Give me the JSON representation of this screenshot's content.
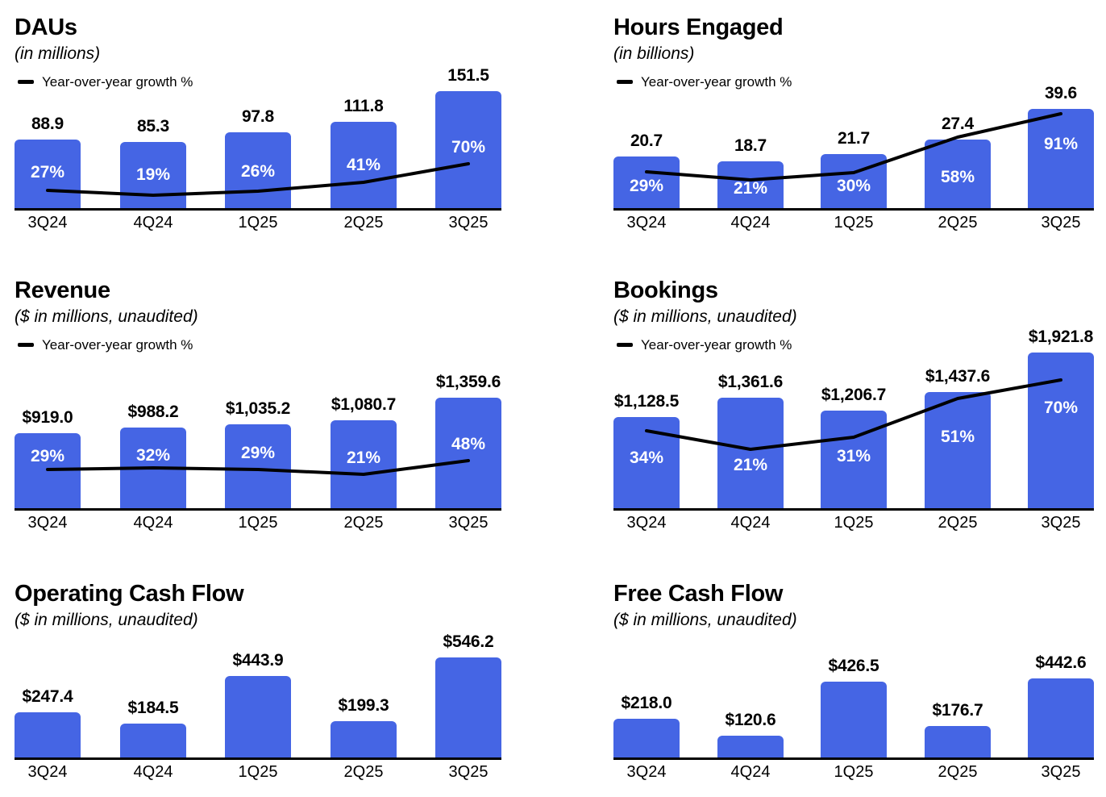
{
  "colors": {
    "bar": "#4565E4",
    "growth_line": "#000000",
    "axis": "#000000",
    "value_text": "#000000",
    "pct_text": "#ffffff"
  },
  "chart_data": [
    {
      "id": "daus",
      "type": "bar",
      "title": "DAUs",
      "subtitle": "(in millions)",
      "legend": "Year-over-year growth %",
      "legend_position": "top-left",
      "grid": false,
      "categories": [
        "3Q24",
        "4Q24",
        "1Q25",
        "2Q25",
        "3Q25"
      ],
      "series": [
        {
          "name": "DAUs",
          "type": "bar",
          "values": [
            88.9,
            85.3,
            97.8,
            111.8,
            151.5
          ],
          "labels": [
            "88.9",
            "85.3",
            "97.8",
            "111.8",
            "151.5"
          ]
        },
        {
          "name": "Year-over-year growth %",
          "type": "line",
          "values": [
            27,
            19,
            26,
            41,
            70
          ],
          "labels": [
            "27%",
            "19%",
            "26%",
            "41%",
            "70%"
          ]
        }
      ],
      "ylim": [
        0,
        160
      ]
    },
    {
      "id": "hours-engaged",
      "type": "bar",
      "title": "Hours Engaged",
      "subtitle": "(in billions)",
      "legend": "Year-over-year growth %",
      "legend_position": "top-left",
      "grid": false,
      "categories": [
        "3Q24",
        "4Q24",
        "1Q25",
        "2Q25",
        "3Q25"
      ],
      "series": [
        {
          "name": "Hours Engaged",
          "type": "bar",
          "values": [
            20.7,
            18.7,
            21.7,
            27.4,
            39.6
          ],
          "labels": [
            "20.7",
            "18.7",
            "21.7",
            "27.4",
            "39.6"
          ]
        },
        {
          "name": "Year-over-year growth %",
          "type": "line",
          "values": [
            29,
            21,
            30,
            58,
            91
          ],
          "labels": [
            "29%",
            "21%",
            "30%",
            "58%",
            "91%"
          ]
        }
      ],
      "ylim": [
        0,
        42
      ]
    },
    {
      "id": "revenue",
      "type": "bar",
      "title": "Revenue",
      "subtitle": "($ in millions, unaudited)",
      "legend": "Year-over-year growth %",
      "legend_position": "top-left",
      "grid": false,
      "categories": [
        "3Q24",
        "4Q24",
        "1Q25",
        "2Q25",
        "3Q25"
      ],
      "series": [
        {
          "name": "Revenue",
          "type": "bar",
          "values": [
            919.0,
            988.2,
            1035.2,
            1080.7,
            1359.6
          ],
          "labels": [
            "$919.0",
            "$988.2",
            "$1,035.2",
            "$1,080.7",
            "$1,359.6"
          ]
        },
        {
          "name": "Year-over-year growth %",
          "type": "line",
          "values": [
            29,
            32,
            29,
            21,
            48
          ],
          "labels": [
            "29%",
            "32%",
            "29%",
            "21%",
            "48%"
          ]
        }
      ],
      "ylim": [
        0,
        1500
      ]
    },
    {
      "id": "bookings",
      "type": "bar",
      "title": "Bookings",
      "subtitle": "($ in millions, unaudited)",
      "legend": "Year-over-year growth %",
      "legend_position": "top-left",
      "grid": false,
      "categories": [
        "3Q24",
        "4Q24",
        "1Q25",
        "2Q25",
        "3Q25"
      ],
      "series": [
        {
          "name": "Bookings",
          "type": "bar",
          "values": [
            1128.5,
            1361.6,
            1206.7,
            1437.6,
            1921.8
          ],
          "labels": [
            "$1,128.5",
            "$1,361.6",
            "$1,206.7",
            "$1,437.6",
            "$1,921.8"
          ]
        },
        {
          "name": "Year-over-year growth %",
          "type": "line",
          "values": [
            34,
            21,
            31,
            51,
            70
          ],
          "labels": [
            "34%",
            "21%",
            "31%",
            "51%",
            "70%"
          ]
        }
      ],
      "ylim": [
        0,
        2000
      ]
    },
    {
      "id": "operating-cash-flow",
      "type": "bar",
      "title": "Operating Cash Flow",
      "subtitle": "($ in millions, unaudited)",
      "grid": false,
      "categories": [
        "3Q24",
        "4Q24",
        "1Q25",
        "2Q25",
        "3Q25"
      ],
      "series": [
        {
          "name": "Operating Cash Flow",
          "type": "bar",
          "values": [
            247.4,
            184.5,
            443.9,
            199.3,
            546.2
          ],
          "labels": [
            "$247.4",
            "$184.5",
            "$443.9",
            "$199.3",
            "$546.2"
          ]
        }
      ],
      "ylim": [
        0,
        600
      ]
    },
    {
      "id": "free-cash-flow",
      "type": "bar",
      "title": "Free Cash Flow",
      "subtitle": "($ in millions, unaudited)",
      "grid": false,
      "categories": [
        "3Q24",
        "4Q24",
        "1Q25",
        "2Q25",
        "3Q25"
      ],
      "series": [
        {
          "name": "Free Cash Flow",
          "type": "bar",
          "values": [
            218.0,
            120.6,
            426.5,
            176.7,
            442.6
          ],
          "labels": [
            "$218.0",
            "$120.6",
            "$426.5",
            "$176.7",
            "$442.6"
          ]
        }
      ],
      "ylim": [
        0,
        500
      ]
    }
  ]
}
